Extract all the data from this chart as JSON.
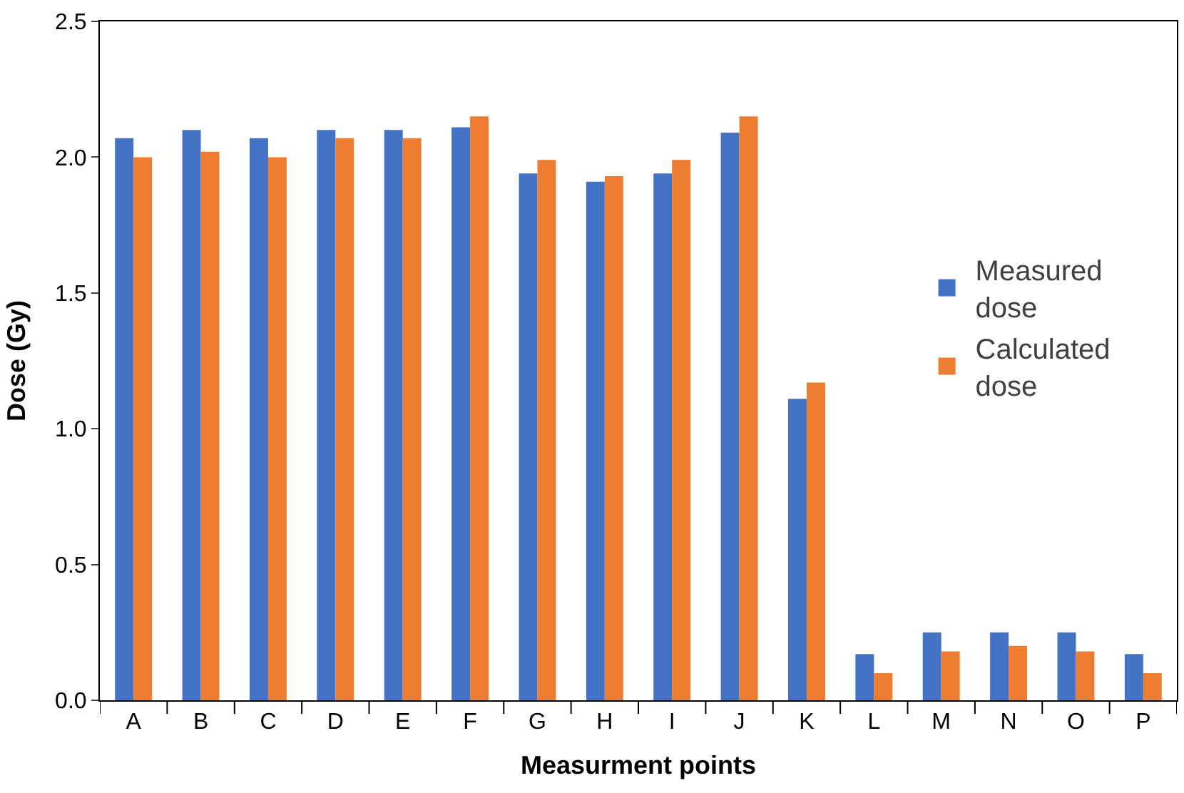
{
  "chart_data": {
    "type": "bar",
    "xlabel": "Measurment points",
    "ylabel": "Dose (Gy)",
    "categories": [
      "A",
      "B",
      "C",
      "D",
      "E",
      "F",
      "G",
      "H",
      "I",
      "J",
      "K",
      "L",
      "M",
      "N",
      "O",
      "P"
    ],
    "series": [
      {
        "name": "Measured dose",
        "color": "#4472c4",
        "values": [
          2.07,
          2.1,
          2.07,
          2.1,
          2.1,
          2.11,
          1.94,
          1.91,
          1.94,
          2.09,
          1.11,
          0.17,
          0.25,
          0.25,
          0.25,
          0.17
        ]
      },
      {
        "name": "Calculated dose",
        "color": "#ed7d31",
        "values": [
          2.0,
          2.02,
          2.0,
          2.07,
          2.07,
          2.15,
          1.99,
          1.93,
          1.99,
          2.15,
          1.17,
          0.1,
          0.18,
          0.2,
          0.18,
          0.1
        ]
      }
    ],
    "ylim": [
      0,
      2.5
    ],
    "yticks": [
      {
        "value": 0,
        "label": "0.0"
      },
      {
        "value": 0.5,
        "label": "0.5"
      },
      {
        "value": 1,
        "label": "1.0"
      },
      {
        "value": 1.5,
        "label": "1.5"
      },
      {
        "value": 2,
        "label": "2.0"
      },
      {
        "value": 2.5,
        "label": "2.5"
      }
    ],
    "grid": false,
    "legend": "right"
  }
}
